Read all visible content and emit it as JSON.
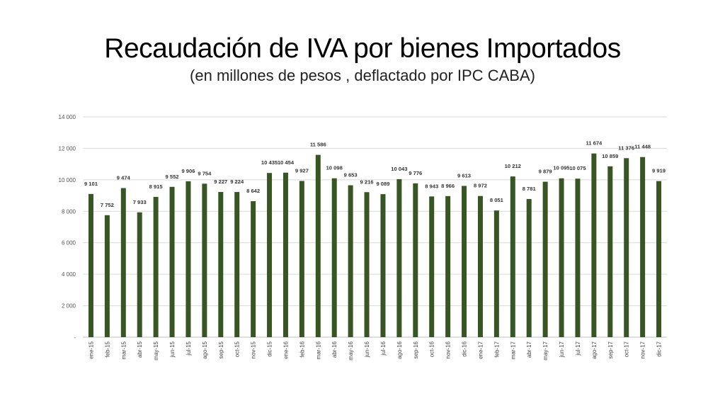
{
  "slide": {
    "title": "Recaudación de IVA por bienes Importados",
    "subtitle": "(en millones de pesos , deflactado por IPC CABA)"
  },
  "colors": {
    "bar": "#375623",
    "grid": "#d9d9d9",
    "axis": "#bfbfbf"
  },
  "chart_data": {
    "type": "bar",
    "title": "Recaudación de IVA por bienes Importados",
    "subtitle": "(en millones de pesos , deflactado por IPC CABA)",
    "xlabel": "",
    "ylabel": "",
    "ylim": [
      0,
      14000
    ],
    "yticks": [
      0,
      2000,
      4000,
      6000,
      8000,
      10000,
      12000,
      14000
    ],
    "ytick_labels": [
      "-",
      "2 000",
      "4 000",
      "6 000",
      "8 000",
      "10 000",
      "12 000",
      "14 000"
    ],
    "grid": true,
    "legend": "none",
    "categories": [
      "ene-15",
      "feb-15",
      "mar-15",
      "abr-15",
      "may-15",
      "jun-15",
      "jul-15",
      "ago-15",
      "sep-15",
      "oct-15",
      "nov-15",
      "dic-15",
      "ene-16",
      "feb-16",
      "mar-16",
      "abr-16",
      "may-16",
      "jun-16",
      "jul-16",
      "ago-16",
      "sep-16",
      "oct-16",
      "nov-16",
      "dic-16",
      "ene-17",
      "feb-17",
      "mar-17",
      "abr-17",
      "may-17",
      "jun-17",
      "jul-17",
      "ago-17",
      "sep-17",
      "oct-17",
      "nov-17",
      "dic-17"
    ],
    "values": [
      9101,
      7752,
      9474,
      7933,
      8915,
      9552,
      9906,
      9754,
      9227,
      9224,
      8642,
      10435,
      10454,
      9927,
      11586,
      10098,
      9653,
      9216,
      9089,
      10043,
      9776,
      8943,
      8966,
      9613,
      8972,
      8051,
      10212,
      8781,
      9879,
      10095,
      10075,
      11674,
      10859,
      11376,
      11448,
      9919
    ],
    "value_labels": [
      "9 101",
      "7 752",
      "9 474",
      "7 933",
      "8 915",
      "9 552",
      "9 906",
      "9 754",
      "9 227",
      "9 224",
      "8 642",
      "10 435",
      "10 454",
      "9 927",
      "11 586",
      "10 098",
      "9 653",
      "9 216",
      "9 089",
      "10 043",
      "9 776",
      "8 943",
      "8 966",
      "9 613",
      "8 972",
      "8 051",
      "10 212",
      "8 781",
      "9 879",
      "10 095",
      "10 075",
      "11 674",
      "10 859",
      "11 376",
      "11 448",
      "9 919"
    ]
  }
}
